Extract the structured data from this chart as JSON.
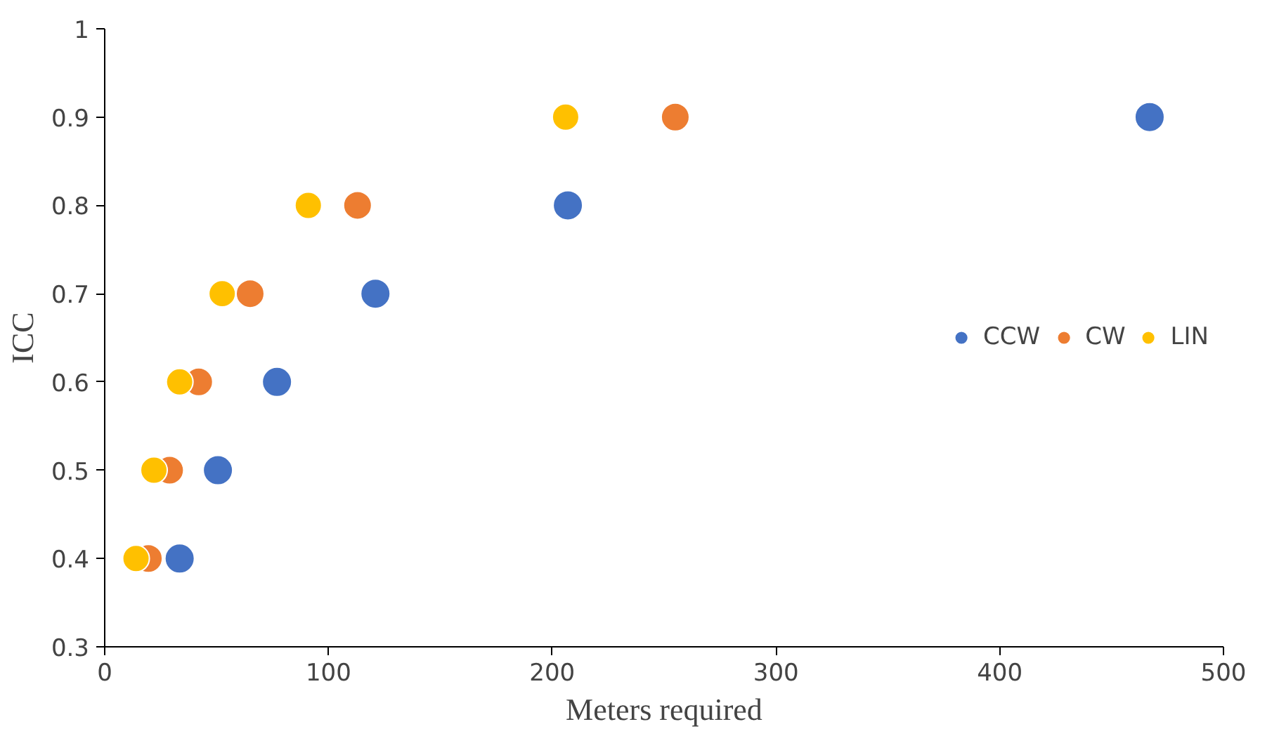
{
  "chart_data": {
    "type": "scatter",
    "xlabel": "Meters required",
    "ylabel": "ICC",
    "xlim": [
      0,
      500
    ],
    "xticks": [
      0,
      100,
      200,
      300,
      400,
      500
    ],
    "ylim": [
      0.3,
      1
    ],
    "yticks": [
      0.3,
      0.4,
      0.5,
      0.6,
      0.7,
      0.8,
      0.9,
      1
    ],
    "grid": false,
    "legend": "right",
    "marker": "circle",
    "series": [
      {
        "name": "CCW",
        "color": "#4472c4",
        "x": [
          33.5,
          50.6,
          77,
          121,
          207,
          467
        ],
        "values": [
          0.4,
          0.5,
          0.6,
          0.7,
          0.8,
          0.9
        ]
      },
      {
        "name": "CW",
        "color": "#ed7d31",
        "x": [
          19.5,
          29,
          42,
          65,
          113,
          255
        ],
        "values": [
          0.4,
          0.5,
          0.6,
          0.7,
          0.8,
          0.9
        ]
      },
      {
        "name": "LIN",
        "color": "#ffc000",
        "x": [
          14,
          22,
          33.5,
          52.5,
          91,
          206
        ],
        "values": [
          0.4,
          0.5,
          0.6,
          0.7,
          0.8,
          0.9
        ]
      }
    ]
  }
}
